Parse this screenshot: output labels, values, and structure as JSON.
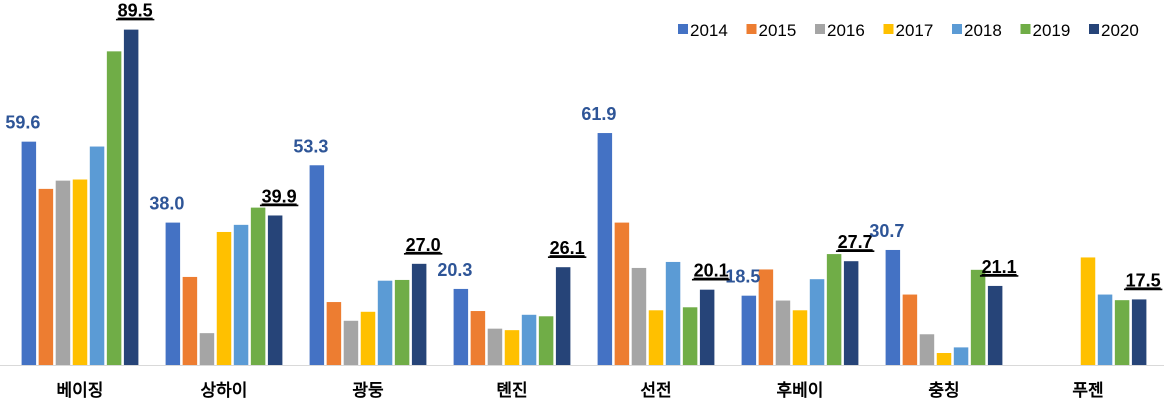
{
  "chart_data": {
    "type": "bar",
    "title": "",
    "xlabel": "",
    "ylabel": "",
    "ylim": [
      0,
      91
    ],
    "grid": false,
    "legend_position": "top-right",
    "categories": [
      "베이징",
      "상하이",
      "광둥",
      "톈진",
      "선전",
      "후베이",
      "충칭",
      "푸젠"
    ],
    "series": [
      {
        "name": "2014",
        "color": "#4472C4",
        "values": [
          59.6,
          38.0,
          53.3,
          20.3,
          61.9,
          18.5,
          30.7,
          null
        ]
      },
      {
        "name": "2015",
        "color": "#ED7D31",
        "values": [
          47.0,
          23.5,
          16.8,
          14.4,
          38.0,
          25.5,
          18.8,
          null
        ]
      },
      {
        "name": "2016",
        "color": "#A5A5A5",
        "values": [
          49.2,
          8.5,
          11.8,
          9.7,
          25.9,
          17.2,
          8.2,
          null
        ]
      },
      {
        "name": "2017",
        "color": "#FFC000",
        "values": [
          49.5,
          35.5,
          14.2,
          9.3,
          14.6,
          14.6,
          3.2,
          28.7
        ]
      },
      {
        "name": "2018",
        "color": "#5B9BD5",
        "values": [
          58.3,
          37.4,
          22.5,
          13.4,
          27.5,
          22.9,
          4.7,
          18.8
        ]
      },
      {
        "name": "2019",
        "color": "#70AD47",
        "values": [
          83.7,
          42.0,
          22.7,
          13.0,
          15.4,
          29.6,
          25.4,
          17.3
        ]
      },
      {
        "name": "2020",
        "color": "#264478",
        "values": [
          89.5,
          39.9,
          27.0,
          26.1,
          20.1,
          27.7,
          21.1,
          17.5
        ]
      }
    ],
    "data_labels": [
      {
        "category": "베이징",
        "series": "2014",
        "text": "59.6"
      },
      {
        "category": "베이징",
        "series": "2020",
        "text": "89.5"
      },
      {
        "category": "상하이",
        "series": "2014",
        "text": "38.0"
      },
      {
        "category": "상하이",
        "series": "2020",
        "text": "39.9"
      },
      {
        "category": "광둥",
        "series": "2014",
        "text": "53.3"
      },
      {
        "category": "광둥",
        "series": "2020",
        "text": "27.0"
      },
      {
        "category": "톈진",
        "series": "2014",
        "text": "20.3"
      },
      {
        "category": "톈진",
        "series": "2020",
        "text": "26.1"
      },
      {
        "category": "선전",
        "series": "2014",
        "text": "61.9"
      },
      {
        "category": "선전",
        "series": "2020",
        "text": "20.1"
      },
      {
        "category": "후베이",
        "series": "2014",
        "text": "18.5"
      },
      {
        "category": "후베이",
        "series": "2020",
        "text": "27.7"
      },
      {
        "category": "충칭",
        "series": "2014",
        "text": "30.7"
      },
      {
        "category": "충칭",
        "series": "2020",
        "text": "21.1"
      },
      {
        "category": "푸젠",
        "series": "2020",
        "text": "17.5"
      }
    ],
    "label_colors": {
      "first": "#2E5597",
      "last": "#000000"
    }
  }
}
